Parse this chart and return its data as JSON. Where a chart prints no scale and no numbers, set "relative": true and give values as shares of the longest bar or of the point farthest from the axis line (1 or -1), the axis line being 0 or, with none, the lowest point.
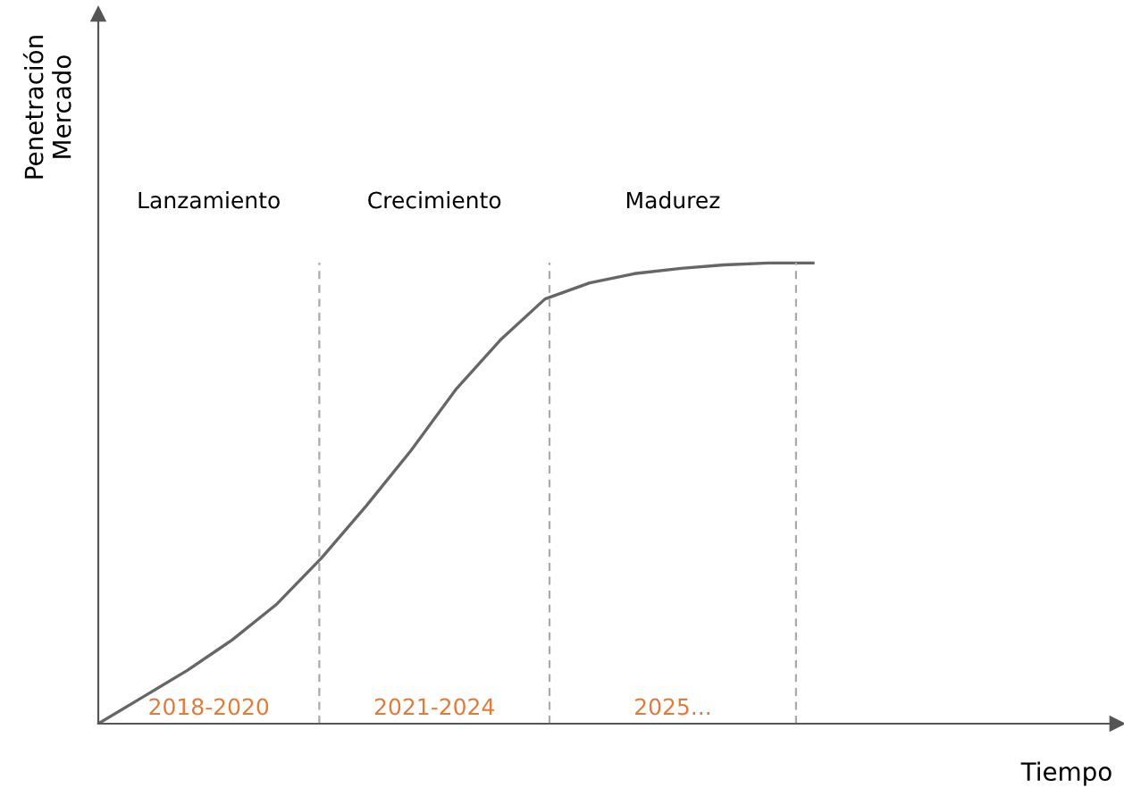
{
  "chart_data": {
    "type": "line",
    "relative": true,
    "ylabel": "Penetración\nMercado",
    "marker": "none",
    "line_style": "solid",
    "categories": [
      null,
      null,
      null,
      null,
      null,
      null,
      null,
      null,
      null,
      null,
      null,
      null,
      null,
      null,
      null,
      null,
      null
    ],
    "series": [
      {
        "color": "#666666",
        "values": [
          0,
          0.058,
          0.116,
          0.182,
          0.26,
          0.36,
          0.473,
          0.593,
          0.725,
          0.833,
          0.922,
          0.957,
          0.977,
          0.988,
          0.996,
          1.0,
          1.0
        ]
      }
    ],
    "annotations": [
      "Lanzamiento",
      "Crecimiento",
      "Madurez",
      "2018-2020",
      "2021-2024",
      "2025...",
      "Tiempo"
    ]
  }
}
